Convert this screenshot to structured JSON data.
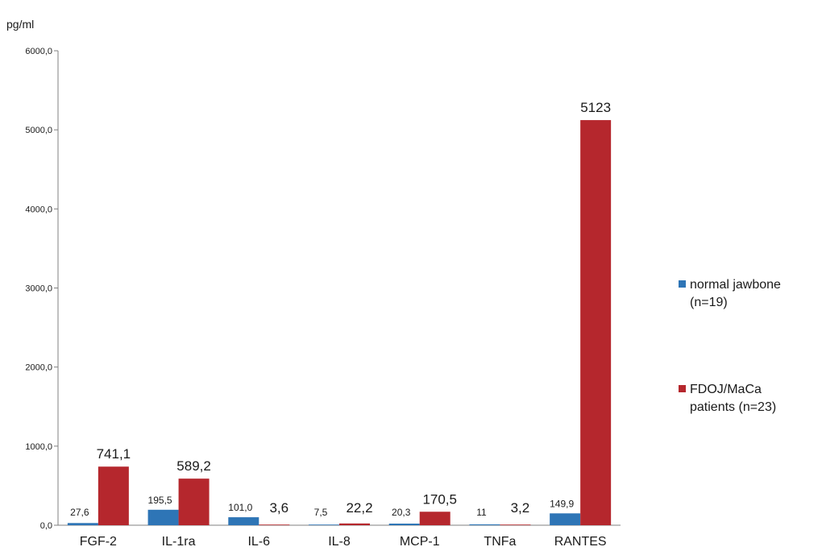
{
  "chart_data": {
    "type": "bar",
    "ylabel": "pg/ml",
    "ylim": [
      0,
      6000
    ],
    "yticks": [
      "0,0",
      "1000,0",
      "2000,0",
      "3000,0",
      "4000,0",
      "5000,0",
      "6000,0"
    ],
    "categories": [
      "FGF-2",
      "IL-1ra",
      "IL-6",
      "IL-8",
      "MCP-1",
      "TNFa",
      "RANTES"
    ],
    "series": [
      {
        "legend_lines": [
          "normal jawbone",
          "(n=19)"
        ],
        "color": "#2e75b6",
        "values": [
          27.6,
          195.5,
          101.0,
          7.5,
          20.3,
          11,
          149.9
        ],
        "labels": [
          "27,6",
          "195,5",
          "101,0",
          "7,5",
          "20,3",
          "11",
          "149,9"
        ]
      },
      {
        "legend_lines": [
          "FDOJ/MaCa",
          "patients (n=23)"
        ],
        "color": "#b5272d",
        "values": [
          741.1,
          589.2,
          3.6,
          22.2,
          170.5,
          3.2,
          5123
        ],
        "labels": [
          "741,1",
          "589,2",
          "3,6",
          "22,2",
          "170,5",
          "3,2",
          "5123"
        ]
      }
    ],
    "grid": false,
    "legend_position": "right"
  }
}
